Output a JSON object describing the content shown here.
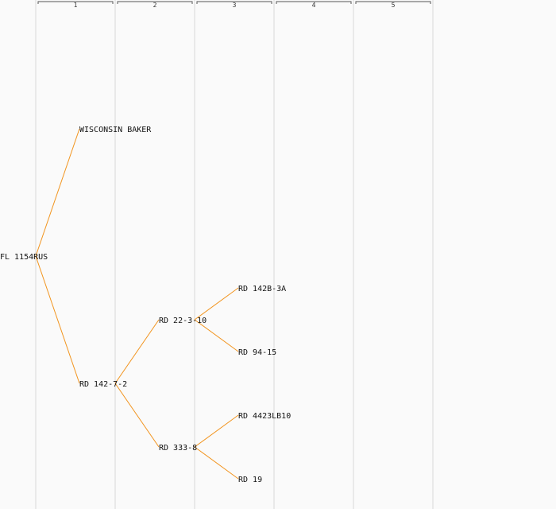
{
  "generations": [
    "1",
    "2",
    "3",
    "4",
    "5"
  ],
  "tree": {
    "name": "FL 1154RUS",
    "children": [
      {
        "name": "WISCONSIN BAKER",
        "children": []
      },
      {
        "name": "RD 142-7-2",
        "children": [
          {
            "name": "RD 22-3-10",
            "children": [
              {
                "name": "RD 142B-3A",
                "children": []
              },
              {
                "name": "RD 94-15",
                "children": []
              }
            ]
          },
          {
            "name": "RD 333-8",
            "children": [
              {
                "name": "RD 4423LB10",
                "children": []
              },
              {
                "name": "RD 19",
                "children": []
              }
            ]
          }
        ]
      }
    ]
  },
  "colors": {
    "edge": "#f2941e",
    "background": "#fafafa",
    "column_line": "#d8d8d8",
    "text": "#111111"
  }
}
